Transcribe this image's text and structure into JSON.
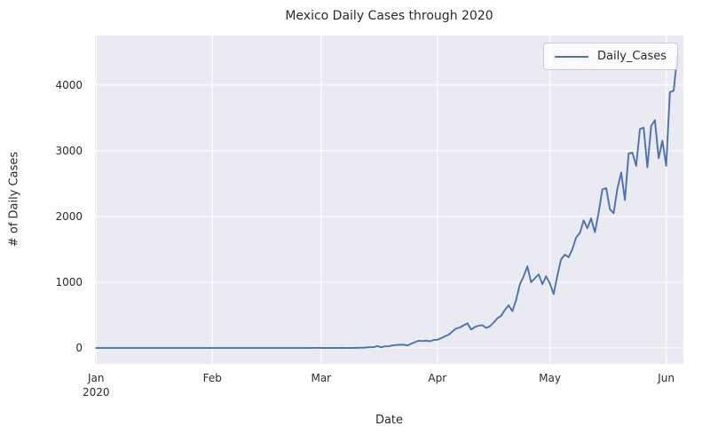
{
  "figure": {
    "title": "Mexico Daily Cases through 2020",
    "xlabel": "Date",
    "ylabel": "# of Daily Cases"
  },
  "legend": {
    "label": "Daily_Cases"
  },
  "colors": {
    "line": "#4c72b0",
    "plot_background": "#eaeaf2",
    "grid": "#ffffff",
    "text": "#2b2b2b",
    "legend_border": "#cccccc"
  },
  "chart_data": {
    "type": "line",
    "title": "Mexico Daily Cases through 2020",
    "xlabel": "Date",
    "ylabel": "# of Daily Cases",
    "legend_entries": [
      "Daily_Cases"
    ],
    "legend_position": "upper right",
    "grid": true,
    "x_start_date": "2020-01-01",
    "x_end_date": "2020-06-04",
    "frequency": "daily",
    "x_ticks": [
      {
        "label": "Jan",
        "sublabel": "2020",
        "day": 0
      },
      {
        "label": "Feb",
        "sublabel": "",
        "day": 31
      },
      {
        "label": "Mar",
        "sublabel": "",
        "day": 60
      },
      {
        "label": "Apr",
        "sublabel": "",
        "day": 91
      },
      {
        "label": "May",
        "sublabel": "",
        "day": 121
      },
      {
        "label": "Jun",
        "sublabel": "",
        "day": 152
      }
    ],
    "y_ticks": [
      0,
      1000,
      2000,
      3000,
      4000
    ],
    "ylim": [
      -242,
      4752
    ],
    "xlim_days": [
      -0.3,
      156.6
    ],
    "series": [
      {
        "name": "Daily_Cases",
        "values": [
          0,
          0,
          0,
          0,
          0,
          0,
          0,
          0,
          0,
          0,
          0,
          0,
          0,
          0,
          0,
          0,
          0,
          0,
          0,
          0,
          0,
          0,
          0,
          0,
          0,
          0,
          0,
          0,
          0,
          0,
          0,
          0,
          0,
          0,
          0,
          0,
          0,
          0,
          0,
          0,
          0,
          0,
          0,
          0,
          0,
          0,
          0,
          0,
          0,
          0,
          0,
          0,
          0,
          0,
          0,
          0,
          0,
          0,
          2,
          2,
          1,
          0,
          1,
          0,
          1,
          1,
          1,
          0,
          2,
          1,
          3,
          4,
          8,
          12,
          12,
          29,
          11,
          25,
          25,
          39,
          46,
          48,
          51,
          38,
          65,
          88,
          110,
          105,
          112,
          101,
          121,
          125,
          148,
          178,
          202,
          250,
          296,
          312,
          345,
          375,
          280,
          320,
          340,
          347,
          305,
          330,
          385,
          450,
          490,
          578,
          650,
          560,
          730,
          970,
          1090,
          1240,
          1000,
          1060,
          1120,
          970,
          1090,
          980,
          820,
          1100,
          1350,
          1420,
          1380,
          1500,
          1680,
          1750,
          1940,
          1820,
          1970,
          1760,
          2060,
          2410,
          2430,
          2110,
          2050,
          2420,
          2670,
          2250,
          2960,
          2970,
          2770,
          3330,
          3350,
          2748,
          3377,
          3463,
          2885,
          3152,
          2771,
          3891,
          3912,
          4442
        ]
      }
    ]
  }
}
